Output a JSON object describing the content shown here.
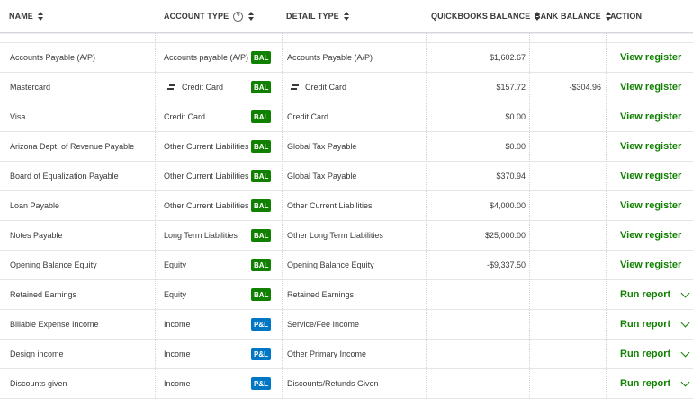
{
  "header": {
    "name": "NAME",
    "account_type": "ACCOUNT TYPE",
    "detail_type": "DETAIL TYPE",
    "qb_balance": "QUICKBOOKS BALANCE",
    "bank_balance": "BANK BALANCE",
    "action": "ACTION",
    "help_glyph": "?"
  },
  "rows": [
    {
      "name": "Accounts Payable (A/P)",
      "type": "Accounts payable (A/P)",
      "badge": "BAL",
      "detail": "Accounts Payable (A/P)",
      "qb": "$1,602.67",
      "bank": "",
      "action": "View register"
    },
    {
      "name": "Mastercard",
      "type": "Credit Card",
      "badge": "BAL",
      "detail": "Credit Card",
      "qb": "$157.72",
      "bank": "-$304.96",
      "action": "View register",
      "icon": "bank-connected-icon"
    },
    {
      "name": "Visa",
      "type": "Credit Card",
      "badge": "BAL",
      "detail": "Credit Card",
      "qb": "$0.00",
      "bank": "",
      "action": "View register"
    },
    {
      "name": "Arizona Dept. of Revenue Payable",
      "type": "Other Current Liabilities",
      "badge": "BAL",
      "detail": "Global Tax Payable",
      "qb": "$0.00",
      "bank": "",
      "action": "View register"
    },
    {
      "name": "Board of Equalization Payable",
      "type": "Other Current Liabilities",
      "badge": "BAL",
      "detail": "Global Tax Payable",
      "qb": "$370.94",
      "bank": "",
      "action": "View register"
    },
    {
      "name": "Loan Payable",
      "type": "Other Current Liabilities",
      "badge": "BAL",
      "detail": "Other Current Liabilities",
      "qb": "$4,000.00",
      "bank": "",
      "action": "View register"
    },
    {
      "name": "Notes Payable",
      "type": "Long Term Liabilities",
      "badge": "BAL",
      "detail": "Other Long Term Liabilities",
      "qb": "$25,000.00",
      "bank": "",
      "action": "View register"
    },
    {
      "name": "Opening Balance Equity",
      "type": "Equity",
      "badge": "BAL",
      "detail": "Opening Balance Equity",
      "qb": "-$9,337.50",
      "bank": "",
      "action": "View register"
    },
    {
      "name": "Retained Earnings",
      "type": "Equity",
      "badge": "BAL",
      "detail": "Retained Earnings",
      "qb": "",
      "bank": "",
      "action": "Run report",
      "dropdown": true
    },
    {
      "name": "Billable Expense Income",
      "type": "Income",
      "badge": "P&L",
      "detail": "Service/Fee Income",
      "qb": "",
      "bank": "",
      "action": "Run report",
      "dropdown": true
    },
    {
      "name": "Design income",
      "type": "Income",
      "badge": "P&L",
      "detail": "Other Primary Income",
      "qb": "",
      "bank": "",
      "action": "Run report",
      "dropdown": true
    },
    {
      "name": "Discounts given",
      "type": "Income",
      "badge": "P&L",
      "detail": "Discounts/Refunds Given",
      "qb": "",
      "bank": "",
      "action": "Run report",
      "dropdown": true
    }
  ],
  "colors": {
    "bal": "#108000",
    "pl": "#0077c5",
    "action": "#108000"
  }
}
